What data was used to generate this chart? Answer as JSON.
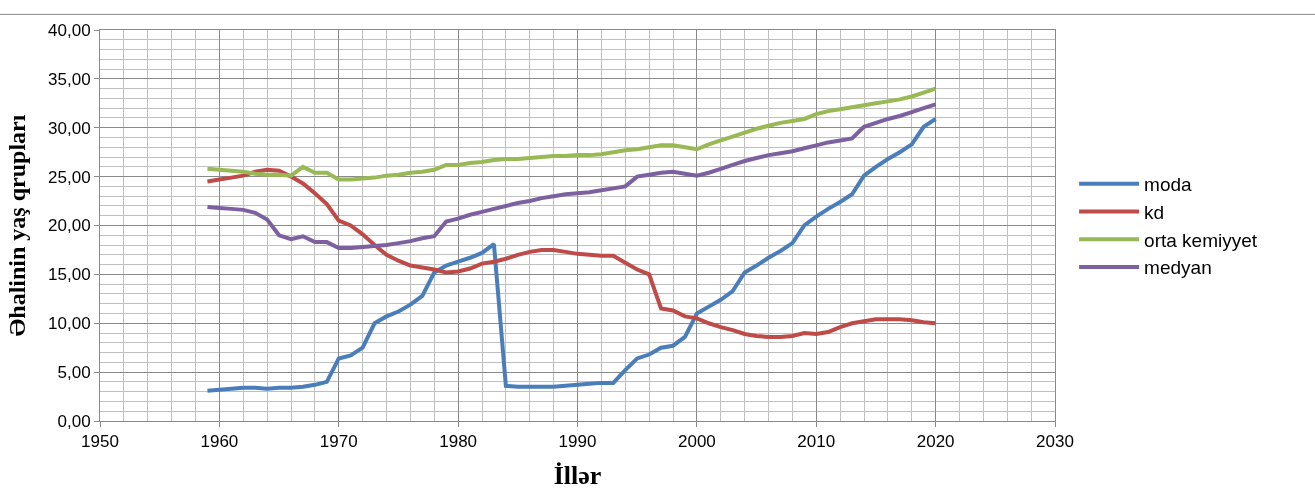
{
  "chart_data": {
    "type": "line",
    "xlabel": "İllər",
    "ylabel": "Əhalinin yaş qrupları",
    "x": [
      1959,
      1960,
      1961,
      1962,
      1963,
      1964,
      1965,
      1966,
      1967,
      1968,
      1969,
      1970,
      1971,
      1972,
      1973,
      1974,
      1975,
      1976,
      1977,
      1978,
      1979,
      1980,
      1981,
      1982,
      1983,
      1984,
      1985,
      1986,
      1987,
      1988,
      1989,
      1990,
      1991,
      1992,
      1993,
      1994,
      1995,
      1996,
      1997,
      1998,
      1999,
      2000,
      2001,
      2002,
      2003,
      2004,
      2005,
      2006,
      2007,
      2008,
      2009,
      2010,
      2011,
      2012,
      2013,
      2014,
      2015,
      2016,
      2017,
      2018,
      2019,
      2020
    ],
    "series": [
      {
        "name": "moda",
        "color": "#4a7ebb",
        "values": [
          3.1,
          3.2,
          3.3,
          3.4,
          3.4,
          3.3,
          3.4,
          3.4,
          3.5,
          3.7,
          4.0,
          6.4,
          6.7,
          7.5,
          10.0,
          10.7,
          11.2,
          11.9,
          12.8,
          15.2,
          15.9,
          16.3,
          16.7,
          17.2,
          18.1,
          3.6,
          3.5,
          3.5,
          3.5,
          3.5,
          3.6,
          3.7,
          3.8,
          3.9,
          3.9,
          5.2,
          6.4,
          6.8,
          7.5,
          7.7,
          8.6,
          11.0,
          11.7,
          12.4,
          13.3,
          15.2,
          15.9,
          16.7,
          17.4,
          18.2,
          20.0,
          20.9,
          21.7,
          22.4,
          23.2,
          25.1,
          26.0,
          26.8,
          27.5,
          28.3,
          30.1,
          30.9
        ]
      },
      {
        "name": "kd",
        "color": "#be4b48",
        "values": [
          24.5,
          24.7,
          24.9,
          25.1,
          25.5,
          25.7,
          25.6,
          25.0,
          24.3,
          23.3,
          22.2,
          20.5,
          20.0,
          19.1,
          18.0,
          17.0,
          16.4,
          15.9,
          15.7,
          15.5,
          15.2,
          15.3,
          15.6,
          16.1,
          16.3,
          16.6,
          17.0,
          17.3,
          17.5,
          17.5,
          17.3,
          17.1,
          17.0,
          16.9,
          16.9,
          16.2,
          15.5,
          15.0,
          11.5,
          11.3,
          10.7,
          10.5,
          10.0,
          9.6,
          9.3,
          8.9,
          8.7,
          8.6,
          8.6,
          8.7,
          9.0,
          8.9,
          9.1,
          9.6,
          10.0,
          10.2,
          10.4,
          10.4,
          10.4,
          10.3,
          10.1,
          10.0
        ]
      },
      {
        "name": "orta kemiyyet",
        "color": "#98b954",
        "values": [
          25.8,
          25.7,
          25.6,
          25.5,
          25.3,
          25.2,
          25.2,
          25.1,
          26.0,
          25.4,
          25.4,
          24.7,
          24.7,
          24.8,
          24.9,
          25.1,
          25.2,
          25.4,
          25.5,
          25.7,
          26.2,
          26.2,
          26.4,
          26.5,
          26.7,
          26.8,
          26.8,
          26.9,
          27.0,
          27.1,
          27.1,
          27.2,
          27.2,
          27.3,
          27.5,
          27.7,
          27.8,
          28.0,
          28.2,
          28.2,
          28.0,
          27.8,
          28.3,
          28.7,
          29.1,
          29.5,
          29.9,
          30.2,
          30.5,
          30.7,
          30.9,
          31.4,
          31.7,
          31.9,
          32.1,
          32.3,
          32.5,
          32.7,
          32.9,
          33.2,
          33.6,
          34.0
        ]
      },
      {
        "name": "medyan",
        "color": "#7d60a0",
        "values": [
          21.9,
          21.8,
          21.7,
          21.6,
          21.3,
          20.6,
          19.0,
          18.6,
          18.9,
          18.3,
          18.3,
          17.7,
          17.7,
          17.8,
          17.9,
          18.0,
          18.2,
          18.4,
          18.7,
          18.9,
          20.4,
          20.7,
          21.1,
          21.4,
          21.7,
          22.0,
          22.3,
          22.5,
          22.8,
          23.0,
          23.2,
          23.3,
          23.4,
          23.6,
          23.8,
          24.0,
          25.0,
          25.2,
          25.4,
          25.5,
          25.3,
          25.1,
          25.4,
          25.8,
          26.2,
          26.6,
          26.9,
          27.2,
          27.4,
          27.6,
          27.9,
          28.2,
          28.5,
          28.7,
          28.9,
          30.1,
          30.5,
          30.9,
          31.2,
          31.6,
          32.0,
          32.4
        ]
      }
    ],
    "xlim": [
      1950,
      2030
    ],
    "xticks": [
      1950,
      1960,
      1970,
      1980,
      1990,
      2000,
      2010,
      2020,
      2030
    ],
    "ylim": [
      0,
      40
    ],
    "yticks": [
      {
        "value": 0,
        "label": "0,00"
      },
      {
        "value": 5,
        "label": "5,00"
      },
      {
        "value": 10,
        "label": "10,00"
      },
      {
        "value": 15,
        "label": "15,00"
      },
      {
        "value": 20,
        "label": "20,00"
      },
      {
        "value": 25,
        "label": "25,00"
      },
      {
        "value": 30,
        "label": "30,00"
      },
      {
        "value": 35,
        "label": "35,00"
      },
      {
        "value": 40,
        "label": "40,00"
      }
    ],
    "grid": true,
    "legend": "right",
    "marker": "none",
    "line_style": "solid"
  }
}
